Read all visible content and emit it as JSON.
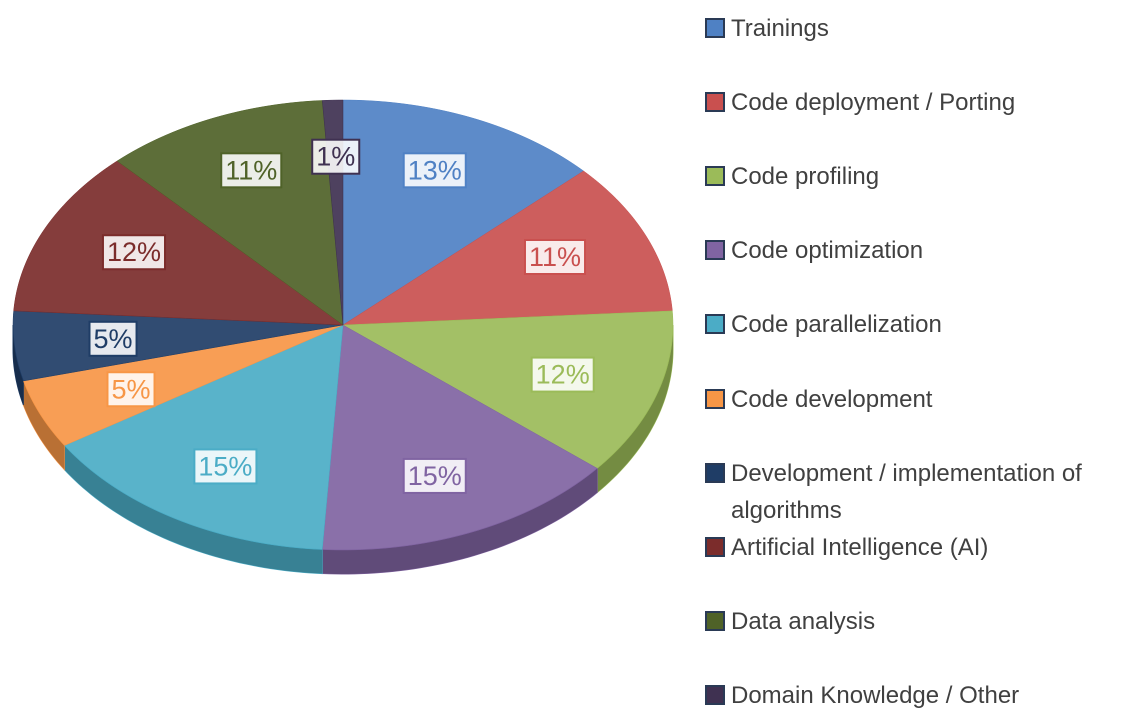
{
  "chart_data": {
    "type": "pie",
    "categories": [
      "Trainings",
      "Code deployment / Porting",
      "Code profiling",
      "Code optimization",
      "Code parallelization",
      "Code development",
      "Development / implementation of algorithms",
      "Artificial Intelligence (AI)",
      "Data analysis",
      "Domain Knowledge / Other"
    ],
    "values": [
      13,
      11,
      12,
      15,
      15,
      5,
      5,
      12,
      11,
      1
    ],
    "value_labels": [
      "13%",
      "11%",
      "12%",
      "15%",
      "15%",
      "5%",
      "5%",
      "12%",
      "11%",
      "1%"
    ],
    "colors": [
      "#4f81c4",
      "#c9504f",
      "#9bbb59",
      "#8064a2",
      "#4bacc6",
      "#f79646",
      "#1f3d66",
      "#7b2c2b",
      "#4f6228",
      "#3f3151"
    ],
    "legend": "right"
  }
}
